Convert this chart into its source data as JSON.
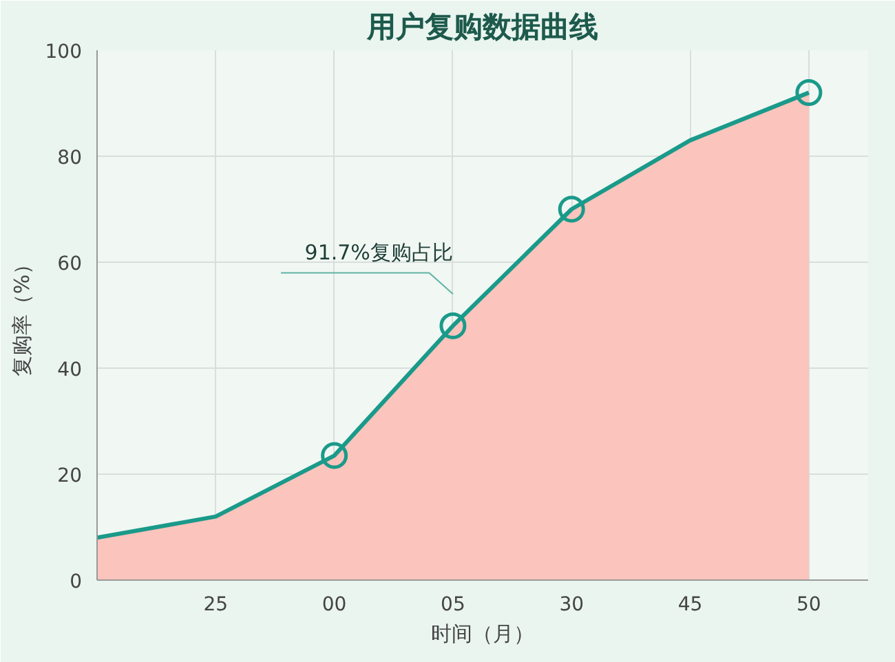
{
  "chart_data": {
    "type": "area",
    "title": "用户复购数据曲线",
    "xlabel": "时间（月）",
    "ylabel": "复购率（%）",
    "categories": [
      null,
      "25",
      "00",
      "05",
      "30",
      "45",
      "50"
    ],
    "series": [
      {
        "color": "#fbc4bc",
        "values": [
          8,
          12,
          23.5,
          48,
          70,
          83,
          92
        ]
      },
      {
        "type": "line",
        "color": "#1a9a8a",
        "values": [
          8,
          12,
          23.5,
          48,
          70,
          83,
          92
        ],
        "marker": "none"
      },
      {
        "type": "scatter",
        "color": "#1a9a8a",
        "values": [
          null,
          null,
          23.5,
          48,
          70,
          null,
          92
        ],
        "marker": "circle"
      }
    ],
    "ylim": [
      0,
      100
    ],
    "yticks": [
      0,
      20,
      40,
      60,
      80,
      100
    ],
    "annotations": [
      "91.7%复购占比"
    ],
    "grid": true
  }
}
